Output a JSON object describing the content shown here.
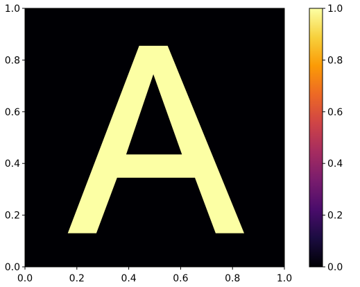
{
  "chart_data": {
    "type": "heatmap",
    "title": "",
    "xlabel": "",
    "ylabel": "",
    "xlim": [
      0,
      1
    ],
    "ylim": [
      0,
      1
    ],
    "x_ticks": [
      0.0,
      0.2,
      0.4,
      0.6,
      0.8,
      1.0
    ],
    "y_ticks": [
      0.0,
      0.2,
      0.4,
      0.6,
      0.8,
      1.0
    ],
    "x_tick_labels": [
      "0.0",
      "0.2",
      "0.4",
      "0.6",
      "0.8",
      "1.0"
    ],
    "y_tick_labels": [
      "0.0",
      "0.2",
      "0.4",
      "0.6",
      "0.8",
      "1.0"
    ],
    "colormap": "inferno",
    "value_range": [
      0,
      1
    ],
    "background_value": 0,
    "shape_value": 1,
    "shape_description": "binary mask of the capital letter A",
    "shape_outer_polygon": [
      [
        0.165,
        0.13
      ],
      [
        0.44,
        0.855
      ],
      [
        0.55,
        0.855
      ],
      [
        0.845,
        0.13
      ],
      [
        0.735,
        0.13
      ],
      [
        0.655,
        0.345
      ],
      [
        0.355,
        0.345
      ],
      [
        0.275,
        0.13
      ]
    ],
    "shape_hole_polygon": [
      [
        0.39,
        0.435
      ],
      [
        0.605,
        0.435
      ],
      [
        0.495,
        0.745
      ]
    ],
    "colorbar": {
      "ticks": [
        0.0,
        0.2,
        0.4,
        0.6,
        0.8,
        1.0
      ],
      "tick_labels": [
        "0.0",
        "0.2",
        "0.4",
        "0.6",
        "0.8",
        "1.0"
      ],
      "colors": [
        "#000004",
        "#1b0c41",
        "#4a0c6b",
        "#781c6d",
        "#a52c60",
        "#cf4446",
        "#ed6925",
        "#fb9b06",
        "#f7d13d",
        "#fcffa4"
      ]
    }
  }
}
